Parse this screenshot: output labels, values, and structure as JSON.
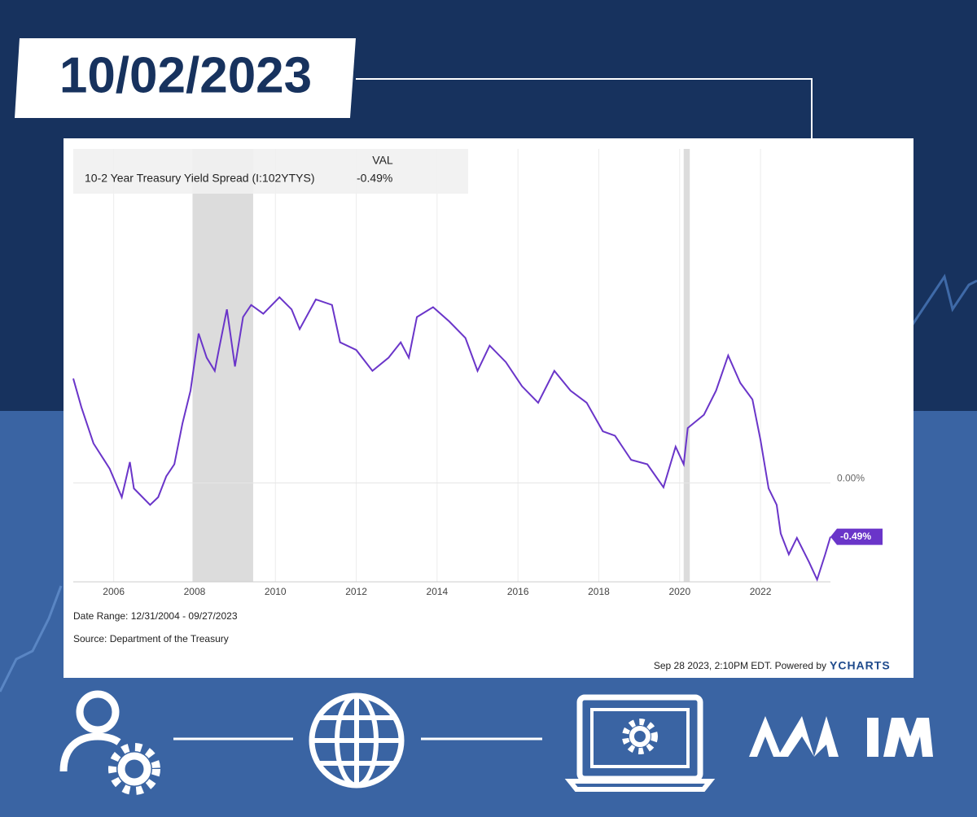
{
  "header_date": "10/02/2023",
  "chart_data": {
    "type": "line",
    "legend_header": "VAL",
    "x": [
      2005.0,
      2005.2,
      2005.5,
      2005.9,
      2006.2,
      2006.4,
      2006.5,
      2006.9,
      2007.1,
      2007.3,
      2007.5,
      2007.7,
      2007.9,
      2008.1,
      2008.3,
      2008.5,
      2008.6,
      2008.8,
      2009.0,
      2009.2,
      2009.4,
      2009.7,
      2010.1,
      2010.4,
      2010.6,
      2011.0,
      2011.4,
      2011.6,
      2012.0,
      2012.4,
      2012.8,
      2013.1,
      2013.3,
      2013.5,
      2013.9,
      2014.3,
      2014.7,
      2015.0,
      2015.3,
      2015.7,
      2016.1,
      2016.5,
      2016.9,
      2017.3,
      2017.7,
      2018.1,
      2018.4,
      2018.8,
      2019.2,
      2019.6,
      2019.9,
      2020.1,
      2020.2,
      2020.6,
      2020.9,
      2021.2,
      2021.5,
      2021.8,
      2022.0,
      2022.2,
      2022.4,
      2022.5,
      2022.7,
      2022.9,
      2023.2,
      2023.4,
      2023.6,
      2023.73
    ],
    "series": [
      {
        "name": "10-2 Year Treasury Yield Spread (I:102YTYS)",
        "color": "#6a35c9",
        "values": [
          0.95,
          0.69,
          0.36,
          0.13,
          -0.13,
          0.19,
          -0.05,
          -0.2,
          -0.13,
          0.06,
          0.17,
          0.54,
          0.84,
          1.36,
          1.14,
          1.02,
          1.21,
          1.58,
          1.06,
          1.51,
          1.62,
          1.54,
          1.69,
          1.58,
          1.4,
          1.67,
          1.62,
          1.28,
          1.21,
          1.02,
          1.14,
          1.28,
          1.14,
          1.51,
          1.6,
          1.47,
          1.32,
          1.02,
          1.25,
          1.1,
          0.88,
          0.73,
          1.02,
          0.84,
          0.73,
          0.47,
          0.43,
          0.21,
          0.17,
          -0.04,
          0.33,
          0.17,
          0.5,
          0.62,
          0.84,
          1.16,
          0.91,
          0.76,
          0.39,
          -0.05,
          -0.2,
          -0.46,
          -0.65,
          -0.5,
          -0.72,
          -0.88,
          -0.65,
          -0.49
        ],
        "last_label": "-0.49%"
      }
    ],
    "recessions": [
      [
        2007.95,
        2009.45
      ],
      [
        2020.1,
        2020.25
      ]
    ],
    "xlim": [
      2005.0,
      2023.73
    ],
    "xticks": [
      2006,
      2008,
      2010,
      2012,
      2014,
      2016,
      2018,
      2020,
      2022
    ],
    "ylim": [
      -0.9,
      3.04
    ],
    "yticks": [
      {
        "value": 0,
        "label": "0.00%"
      }
    ],
    "grid": true,
    "date_range": "Date Range: 12/31/2004 - 09/27/2023",
    "source": "Source: Department of the Treasury",
    "footer": "Sep 28 2023, 2:10PM EDT. Powered by",
    "brand": "YCHARTS"
  }
}
